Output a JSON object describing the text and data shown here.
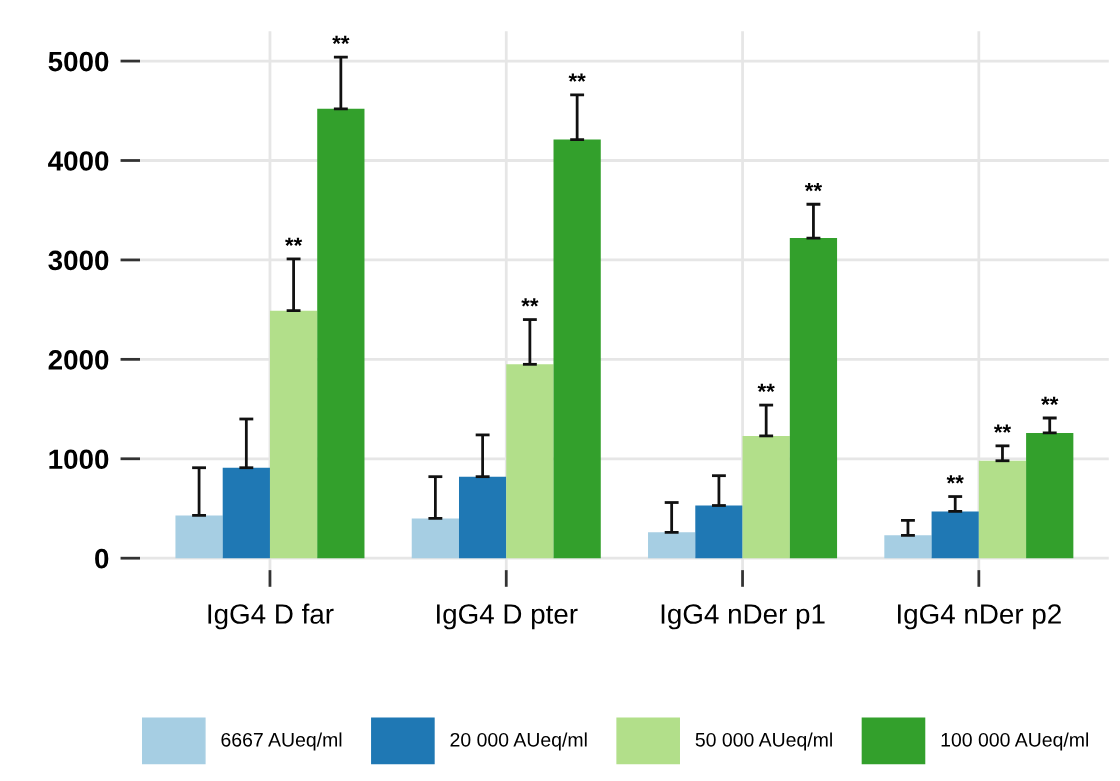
{
  "chart_data": {
    "type": "bar",
    "categories": [
      "IgG4 D far",
      "IgG4 D pter",
      "IgG4 nDer p1",
      "IgG4 nDer p2"
    ],
    "series": [
      {
        "name": "6667 AUeq/ml",
        "color": "#a6cee3",
        "values": [
          430,
          400,
          260,
          230
        ],
        "errors": [
          [
            430,
            910
          ],
          [
            400,
            820
          ],
          [
            260,
            560
          ],
          [
            230,
            380
          ]
        ]
      },
      {
        "name": "20 000 AUeq/ml",
        "color": "#1f78b4",
        "values": [
          910,
          820,
          530,
          470
        ],
        "errors": [
          [
            910,
            1400
          ],
          [
            820,
            1240
          ],
          [
            530,
            830
          ],
          [
            470,
            620
          ]
        ],
        "value_labels": [
          null,
          null,
          null,
          "**"
        ]
      },
      {
        "name": "50 000 AUeq/ml",
        "color": "#b2df8a",
        "values": [
          2490,
          1950,
          1230,
          980
        ],
        "errors": [
          [
            2490,
            3010
          ],
          [
            1950,
            2400
          ],
          [
            1230,
            1540
          ],
          [
            980,
            1130
          ]
        ],
        "value_labels": [
          "**",
          "**",
          "**",
          "**"
        ]
      },
      {
        "name": "100 000 AUeq/ml",
        "color": "#33a02c",
        "values": [
          4520,
          4210,
          3220,
          1260
        ],
        "errors": [
          [
            4520,
            5040
          ],
          [
            4210,
            4660
          ],
          [
            3220,
            3560
          ],
          [
            1260,
            1410
          ]
        ],
        "value_labels": [
          "**",
          "**",
          "**",
          "**"
        ]
      }
    ],
    "ylim": [
      -120,
      5300
    ],
    "yticks": [
      0,
      1000,
      2000,
      3000,
      4000,
      5000
    ],
    "grid": true,
    "legend": "bottom"
  }
}
